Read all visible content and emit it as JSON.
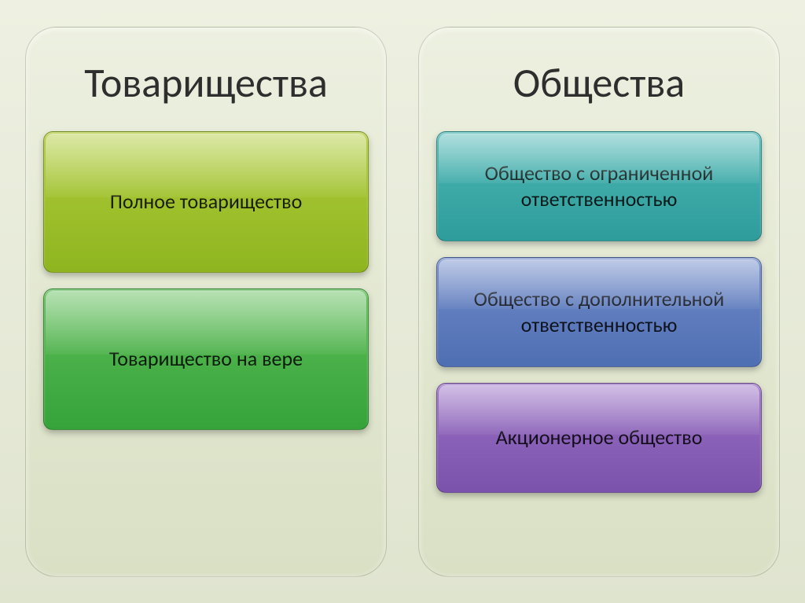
{
  "background_gradient": [
    "#eef0e1",
    "#dfe4cf"
  ],
  "panel_bg_gradient": [
    "#edf0e0",
    "#d9e0c4"
  ],
  "left": {
    "title": "Товарищества",
    "title_color": "#2e2e2e",
    "cards": [
      {
        "label": "Полное товарищество",
        "bg_top": "#b0cc3a",
        "bg_bottom": "#8eb51f"
      },
      {
        "label": "Товарищество на вере",
        "bg_top": "#5fbd57",
        "bg_bottom": "#35a33a"
      }
    ]
  },
  "right": {
    "title": "Общества",
    "title_color": "#2e2e2e",
    "cards": [
      {
        "label": "Общество с ограниченной ответственностью",
        "bg_top": "#4fb8b6",
        "bg_bottom": "#2d9c9a"
      },
      {
        "label": "Общество с дополнительной ответственностью",
        "bg_top": "#6f8ac8",
        "bg_bottom": "#4f6fb3"
      },
      {
        "label": "Акционерное общество",
        "bg_top": "#9970c4",
        "bg_bottom": "#7b52ab"
      }
    ]
  },
  "style": {
    "title_fontsize": 52,
    "card_fontsize": 26,
    "panel_radius": 40,
    "card_radius": 12
  }
}
